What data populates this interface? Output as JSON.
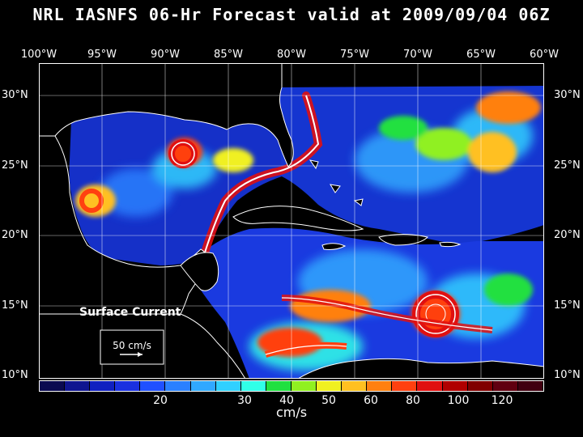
{
  "title": "NRL IASNFS  06-Hr Forecast valid at 2009/09/04 06Z",
  "lon_labels": [
    "100°W",
    "95°W",
    "90°W",
    "85°W",
    "80°W",
    "75°W",
    "70°W",
    "65°W",
    "60°W"
  ],
  "lat_labels": [
    "30°N",
    "25°N",
    "20°N",
    "15°N",
    "10°N"
  ],
  "legend": {
    "title": "Surface Current",
    "reference": "50 cm/s"
  },
  "colorbar": {
    "colors": [
      "#0a0a50",
      "#0f1590",
      "#1020c0",
      "#1a30e0",
      "#2050ff",
      "#2a80ff",
      "#30a8ff",
      "#30d0ff",
      "#30ffe8",
      "#20e040",
      "#90f020",
      "#f0f020",
      "#ffc020",
      "#ff8010",
      "#ff4010",
      "#e01010",
      "#b00000",
      "#800000",
      "#600010",
      "#400010"
    ],
    "ticks": [
      "20",
      "30",
      "40",
      "50",
      "60",
      "80",
      "100",
      "120"
    ],
    "units": "cm/s"
  }
}
